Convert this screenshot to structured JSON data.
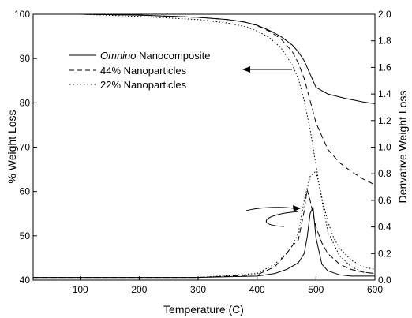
{
  "chart_data": {
    "type": "line",
    "title": "",
    "xlabel": "Temperature (C)",
    "ylabel_left": "% Weight Loss",
    "ylabel_right": "Derivative Weight Loss",
    "xlim": [
      20,
      600
    ],
    "ylim_left": [
      40,
      100
    ],
    "ylim_right": [
      0.0,
      2.0
    ],
    "x_ticks": [
      100,
      200,
      300,
      400,
      500,
      600
    ],
    "y_ticks_left": [
      40,
      50,
      60,
      70,
      80,
      90,
      100
    ],
    "y_ticks_right": [
      "0.0",
      "0.2",
      "0.4",
      "0.6",
      "0.8",
      "1.0",
      "1.2",
      "1.4",
      "1.6",
      "1.8",
      "2.0"
    ],
    "legend": {
      "position": "top-left",
      "entries": [
        {
          "prefix": "Omnino",
          "text": " Nanocomposite",
          "style": "solid"
        },
        {
          "prefix": "",
          "text": "44% Nanoparticles",
          "style": "dashed"
        },
        {
          "prefix": "",
          "text": "22% Nanoparticles",
          "style": "dotted"
        }
      ]
    },
    "series": [
      {
        "axis": "left",
        "style": "solid",
        "x": [
          20,
          100,
          200,
          300,
          350,
          380,
          400,
          420,
          440,
          460,
          470,
          480,
          490,
          500,
          520,
          550,
          580,
          600
        ],
        "y": [
          100,
          100,
          99.8,
          99.3,
          98.8,
          98.2,
          97.5,
          96.4,
          95,
          93,
          91.5,
          89.5,
          86.5,
          83.5,
          82,
          81,
          80.2,
          79.8
        ]
      },
      {
        "axis": "left",
        "style": "dashed",
        "x": [
          20,
          100,
          200,
          300,
          350,
          380,
          400,
          420,
          440,
          460,
          470,
          480,
          490,
          500,
          520,
          540,
          560,
          580,
          600
        ],
        "y": [
          100,
          100,
          99.8,
          99.3,
          98.8,
          98.2,
          97.4,
          96.2,
          94.5,
          91.5,
          89,
          85.5,
          80.5,
          75.5,
          69.5,
          66.5,
          64.5,
          62.8,
          61.5
        ]
      },
      {
        "axis": "left",
        "style": "dotted",
        "x": [
          20,
          100,
          200,
          300,
          350,
          380,
          400,
          420,
          440,
          460,
          470,
          480,
          490,
          500,
          510,
          520,
          540,
          560,
          580,
          600
        ],
        "y": [
          100,
          100,
          99.5,
          98.8,
          98,
          97.2,
          96.2,
          94.8,
          92.5,
          88.5,
          85.5,
          80.5,
          74,
          66,
          58,
          51,
          45.5,
          43,
          41.8,
          41.5
        ]
      },
      {
        "axis": "right",
        "style": "solid",
        "x": [
          20,
          300,
          400,
          430,
          450,
          470,
          480,
          485,
          490,
          495,
          500,
          510,
          520,
          540,
          560,
          600
        ],
        "y": [
          0.02,
          0.02,
          0.03,
          0.05,
          0.08,
          0.13,
          0.2,
          0.32,
          0.5,
          0.55,
          0.32,
          0.12,
          0.07,
          0.04,
          0.03,
          0.03
        ]
      },
      {
        "axis": "right",
        "style": "dashed",
        "x": [
          20,
          300,
          400,
          430,
          450,
          460,
          470,
          480,
          485,
          490,
          500,
          510,
          520,
          540,
          560,
          580,
          600
        ],
        "y": [
          0.02,
          0.02,
          0.04,
          0.1,
          0.2,
          0.26,
          0.3,
          0.52,
          0.68,
          0.6,
          0.4,
          0.28,
          0.2,
          0.12,
          0.08,
          0.06,
          0.05
        ]
      },
      {
        "axis": "right",
        "style": "dotted",
        "x": [
          20,
          300,
          400,
          430,
          450,
          460,
          470,
          480,
          490,
          500,
          510,
          520,
          530,
          540,
          560,
          580,
          600
        ],
        "y": [
          0.02,
          0.02,
          0.05,
          0.12,
          0.2,
          0.26,
          0.35,
          0.6,
          0.78,
          0.82,
          0.62,
          0.44,
          0.32,
          0.24,
          0.15,
          0.1,
          0.08
        ]
      }
    ],
    "annotations": [
      {
        "type": "arrow",
        "direction": "left",
        "points_to": "left axis"
      },
      {
        "type": "curved-arrow",
        "direction": "right",
        "points_to": "right axis"
      }
    ]
  }
}
